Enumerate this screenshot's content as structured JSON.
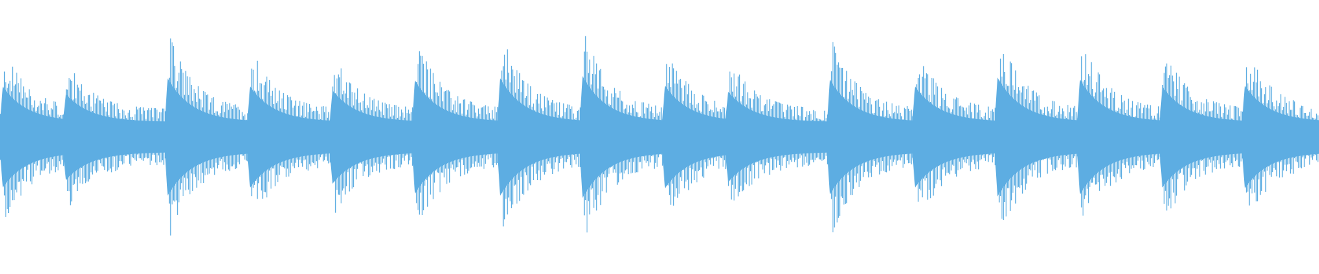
{
  "chart_data": {
    "type": "waveform",
    "title": "",
    "xlabel": "",
    "ylabel": "",
    "ylim": [
      -1,
      1
    ],
    "grid": false,
    "legend": "none",
    "color": "#5dade2",
    "background": "#ffffff",
    "bins": 480,
    "floor_amplitude": 0.2,
    "beats": [
      {
        "onset_bin": 1,
        "peak": 0.67
      },
      {
        "onset_bin": 24,
        "peak": 0.57
      },
      {
        "onset_bin": 61,
        "peak": 0.78
      },
      {
        "onset_bin": 91,
        "peak": 0.67
      },
      {
        "onset_bin": 121,
        "peak": 0.62
      },
      {
        "onset_bin": 151,
        "peak": 0.75
      },
      {
        "onset_bin": 182,
        "peak": 0.78
      },
      {
        "onset_bin": 212,
        "peak": 0.81
      },
      {
        "onset_bin": 242,
        "peak": 0.68
      },
      {
        "onset_bin": 265,
        "peak": 0.6
      },
      {
        "onset_bin": 302,
        "peak": 0.76
      },
      {
        "onset_bin": 333,
        "peak": 0.67
      },
      {
        "onset_bin": 363,
        "peak": 0.79
      },
      {
        "onset_bin": 393,
        "peak": 0.76
      },
      {
        "onset_bin": 423,
        "peak": 0.67
      },
      {
        "onset_bin": 453,
        "peak": 0.68
      }
    ]
  }
}
